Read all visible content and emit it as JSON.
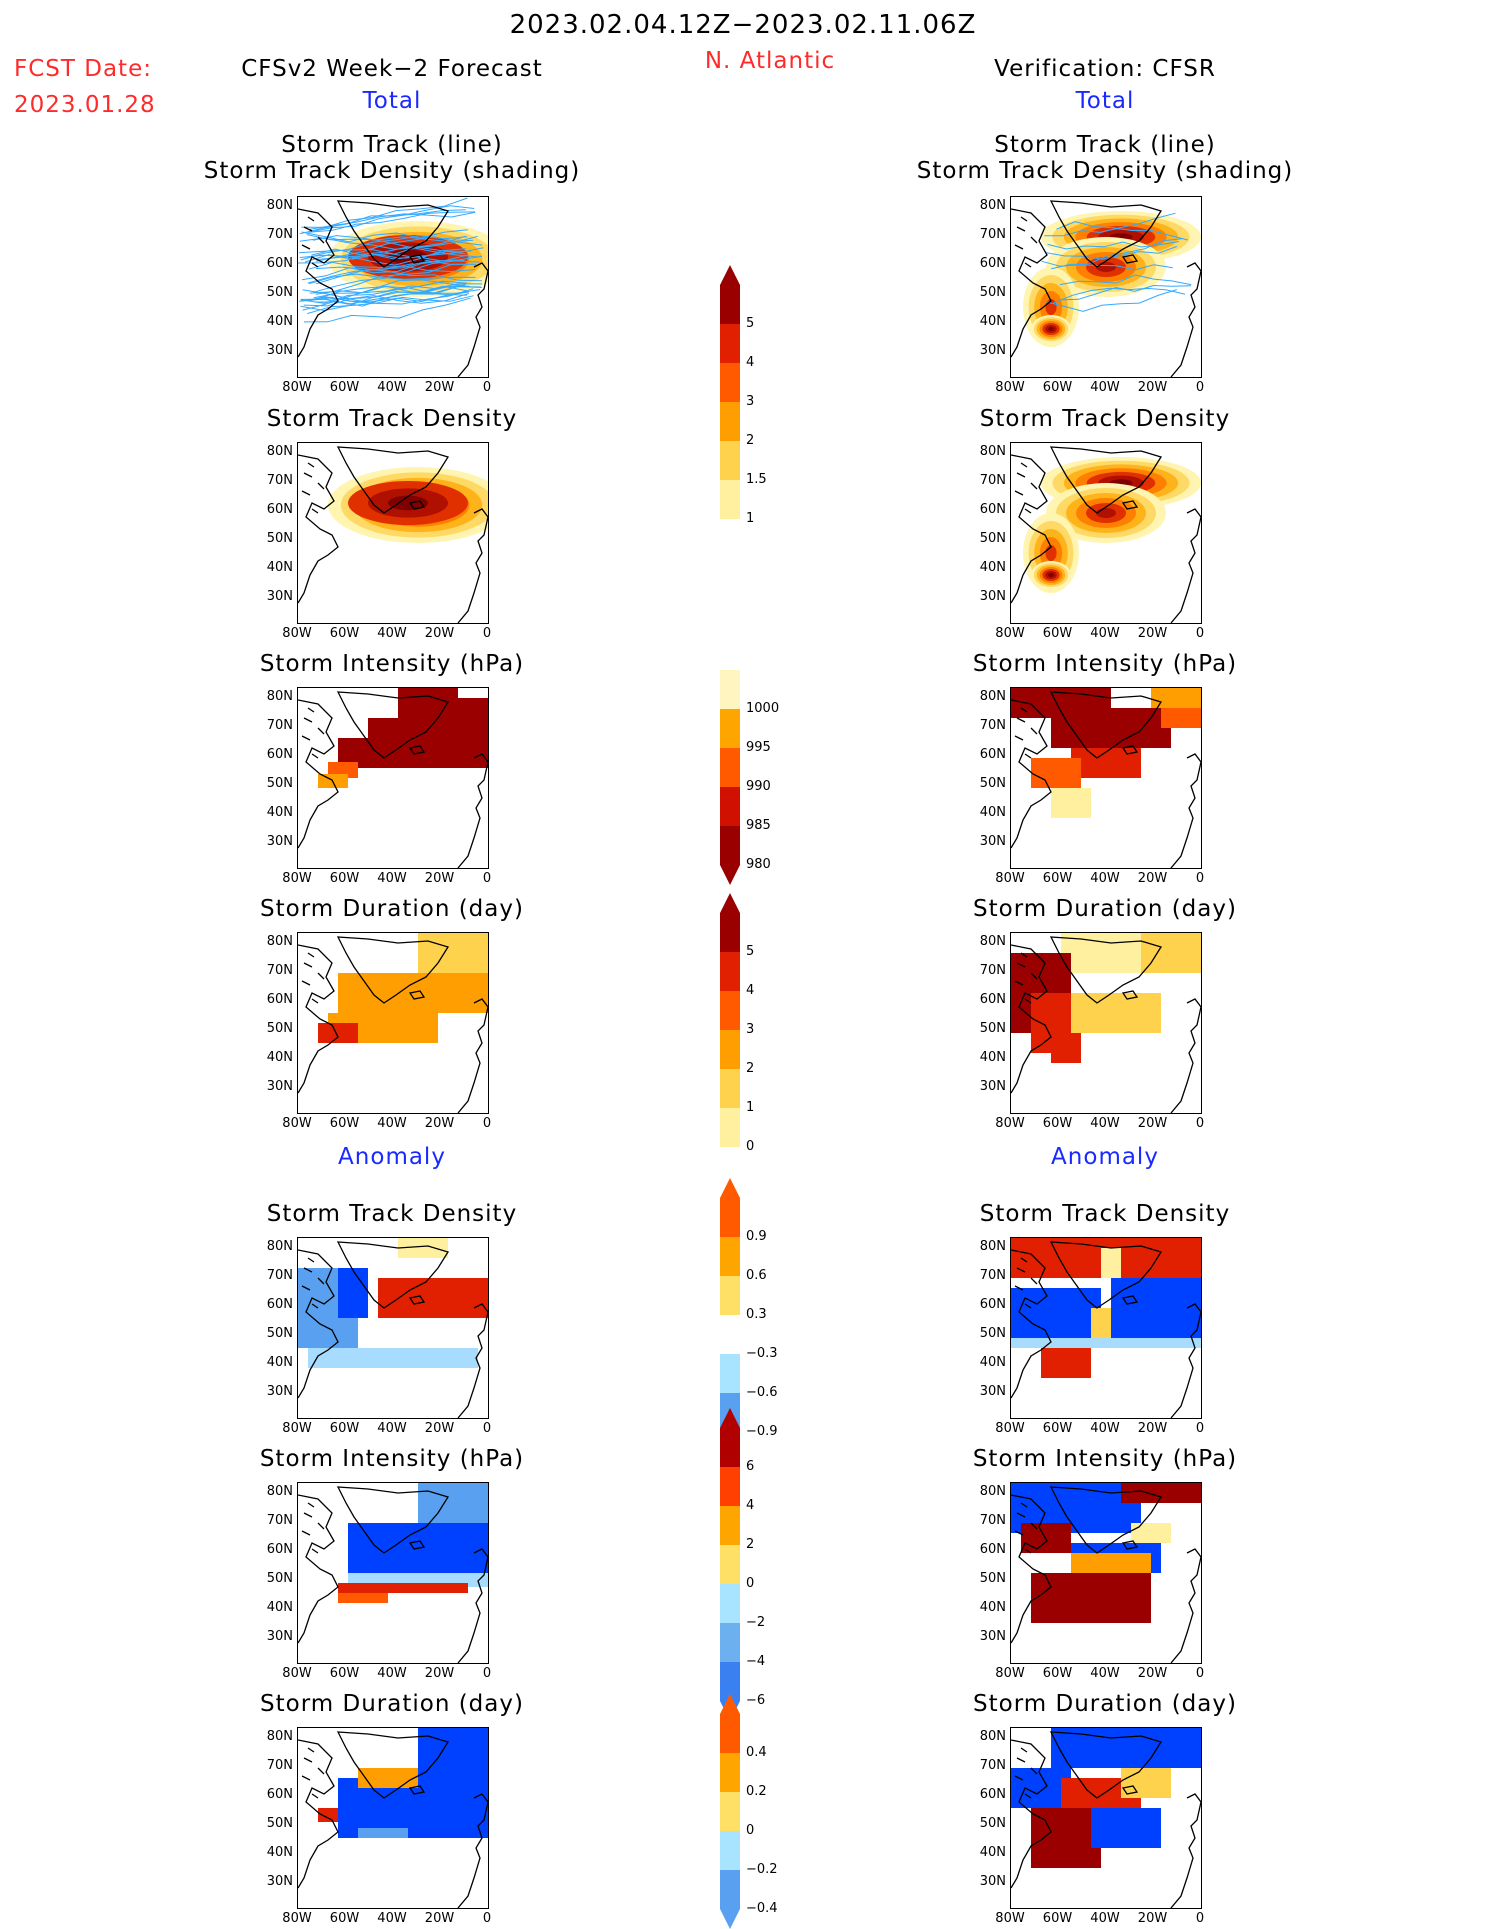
{
  "header": {
    "date_range": "2023.02.04.12Z−2023.02.11.06Z",
    "fcst_label": "FCST Date:",
    "fcst_date": "2023.01.28",
    "left_title": "CFSv2 Week−2 Forecast",
    "region": "N. Atlantic",
    "right_title": "Verification: CFSR",
    "total_left": "Total",
    "total_right": "Total",
    "anomaly_left": "Anomaly",
    "anomaly_right": "Anomaly"
  },
  "colors": {
    "red_text": "#ff2a2a",
    "blue_text": "#1a2aff",
    "track_line": "#33aaff"
  },
  "panels": {
    "track_title_1": "Storm Track (line)",
    "track_title_2": "Storm Track Density (shading)",
    "density": "Storm Track Density",
    "intensity": "Storm Intensity (hPa)",
    "duration": "Storm Duration (day)"
  },
  "axes": {
    "lat_labels": [
      "80N",
      "70N",
      "60N",
      "50N",
      "40N",
      "30N"
    ],
    "lon_labels": [
      "80W",
      "60W",
      "40W",
      "20W",
      "0"
    ]
  },
  "colorbars": {
    "density_total": [
      "5",
      "4",
      "3",
      "2",
      "1.5",
      "1"
    ],
    "intensity_total": [
      "1000",
      "995",
      "990",
      "985",
      "980"
    ],
    "duration_total": [
      "5",
      "4",
      "3",
      "2",
      "1",
      "0"
    ],
    "density_anom": [
      "0.9",
      "0.6",
      "0.3",
      "−0.3",
      "−0.6",
      "−0.9"
    ],
    "intensity_anom": [
      "6",
      "4",
      "2",
      "0",
      "−2",
      "−4",
      "−6"
    ],
    "duration_anom": [
      "0.4",
      "0.2",
      "0",
      "−0.2",
      "−0.4"
    ]
  }
}
